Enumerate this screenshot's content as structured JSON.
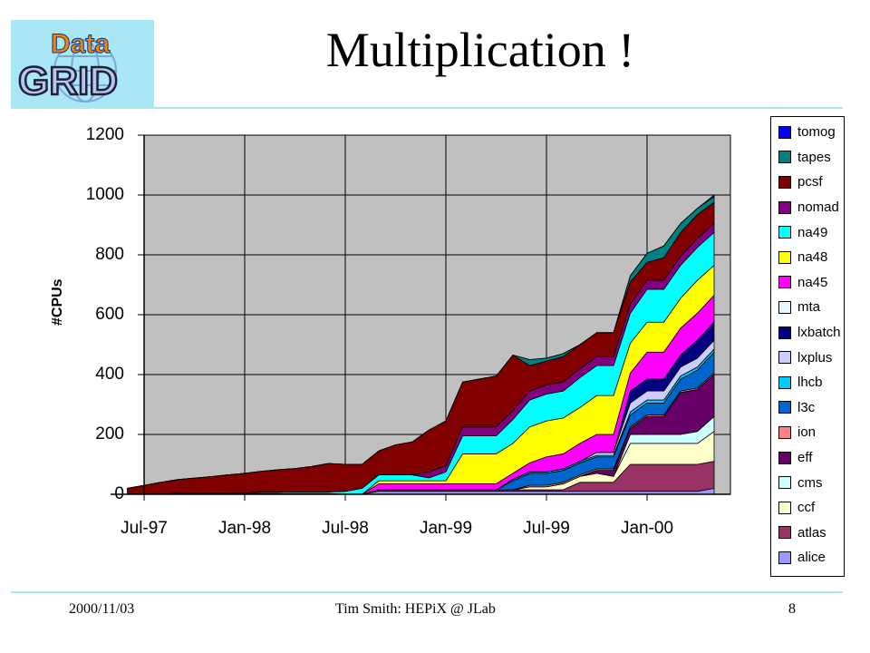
{
  "slide": {
    "title": "Multiplication !",
    "logo_text_top": "Data",
    "logo_text_bottom": "GRID",
    "footer_date": "2000/11/03",
    "footer_center": "Tim Smith: HEPiX @ JLab",
    "footer_page": "8"
  },
  "chart_data": {
    "type": "area",
    "stacked": true,
    "ylabel": "#CPUs",
    "xlabel": "",
    "ylim": [
      0,
      1200
    ],
    "yticks": [
      "0",
      "200",
      "400",
      "600",
      "800",
      "1000",
      "1200"
    ],
    "xticks": [
      "Jul-97",
      "Jan-98",
      "Jul-98",
      "Jan-99",
      "Jul-99",
      "Jan-00"
    ],
    "grid": "vertical lines at x ticks, horizontal at y ticks",
    "background": "#c0c0c0",
    "legend_position": "right",
    "x": [
      "Jun-97",
      "Jul-97",
      "Aug-97",
      "Sep-97",
      "Oct-97",
      "Nov-97",
      "Dec-97",
      "Jan-98",
      "Feb-98",
      "Mar-98",
      "Apr-98",
      "May-98",
      "Jun-98",
      "Jul-98",
      "Aug-98",
      "Sep-98",
      "Oct-98",
      "Nov-98",
      "Dec-98",
      "Jan-99",
      "Feb-99",
      "Mar-99",
      "Apr-99",
      "May-99",
      "Jun-99",
      "Jul-99",
      "Aug-99",
      "Sep-99",
      "Oct-99",
      "Nov-99",
      "Dec-99",
      "Jan-00",
      "Feb-00",
      "Mar-00",
      "Apr-00",
      "May-00"
    ],
    "series": [
      {
        "name": "alice",
        "color": "#9999ff",
        "values": [
          0,
          0,
          0,
          0,
          0,
          0,
          0,
          0,
          0,
          0,
          0,
          0,
          0,
          0,
          0,
          10,
          10,
          10,
          10,
          10,
          10,
          10,
          10,
          10,
          10,
          10,
          10,
          10,
          10,
          10,
          10,
          10,
          10,
          10,
          10,
          20
        ]
      },
      {
        "name": "atlas",
        "color": "#993366",
        "values": [
          0,
          0,
          0,
          0,
          0,
          0,
          0,
          0,
          0,
          0,
          0,
          0,
          0,
          0,
          0,
          5,
          5,
          5,
          5,
          5,
          5,
          5,
          5,
          5,
          5,
          5,
          5,
          30,
          30,
          30,
          90,
          90,
          90,
          90,
          90,
          90
        ]
      },
      {
        "name": "ccf",
        "color": "#ffffcc",
        "values": [
          0,
          0,
          0,
          2,
          2,
          2,
          3,
          3,
          3,
          3,
          3,
          3,
          3,
          0,
          0,
          0,
          0,
          0,
          0,
          0,
          0,
          0,
          0,
          0,
          10,
          10,
          20,
          20,
          30,
          20,
          70,
          70,
          70,
          70,
          70,
          100
        ]
      },
      {
        "name": "cms",
        "color": "#ccffff",
        "values": [
          0,
          0,
          0,
          0,
          0,
          0,
          0,
          0,
          0,
          0,
          0,
          0,
          0,
          0,
          0,
          0,
          0,
          0,
          0,
          0,
          0,
          0,
          0,
          0,
          0,
          0,
          0,
          0,
          0,
          0,
          30,
          30,
          30,
          30,
          40,
          50
        ]
      },
      {
        "name": "eff",
        "color": "#660066",
        "values": [
          0,
          0,
          0,
          0,
          0,
          0,
          0,
          0,
          0,
          0,
          0,
          0,
          0,
          0,
          0,
          0,
          0,
          0,
          0,
          0,
          0,
          0,
          0,
          0,
          0,
          0,
          0,
          0,
          10,
          20,
          20,
          60,
          60,
          140,
          140,
          140
        ]
      },
      {
        "name": "ion",
        "color": "#ff8080",
        "values": [
          0,
          0,
          0,
          0,
          0,
          0,
          0,
          0,
          0,
          0,
          0,
          0,
          0,
          0,
          0,
          0,
          0,
          0,
          0,
          0,
          0,
          0,
          0,
          0,
          5,
          5,
          5,
          5,
          5,
          5,
          5,
          5,
          5,
          5,
          5,
          5
        ]
      },
      {
        "name": "l3c",
        "color": "#0066cc",
        "values": [
          0,
          0,
          0,
          0,
          0,
          0,
          0,
          0,
          0,
          0,
          0,
          0,
          0,
          0,
          0,
          0,
          0,
          0,
          0,
          0,
          0,
          0,
          0,
          30,
          40,
          40,
          40,
          40,
          40,
          40,
          40,
          40,
          40,
          40,
          60,
          70
        ]
      },
      {
        "name": "lhcb",
        "color": "#00ccff",
        "values": [
          0,
          0,
          0,
          0,
          0,
          0,
          0,
          0,
          0,
          0,
          0,
          0,
          0,
          0,
          0,
          0,
          0,
          0,
          0,
          0,
          0,
          0,
          0,
          5,
          5,
          5,
          5,
          5,
          5,
          5,
          10,
          10,
          10,
          10,
          10,
          10
        ]
      },
      {
        "name": "lxplus",
        "color": "#ccccff",
        "values": [
          0,
          0,
          0,
          0,
          0,
          0,
          0,
          0,
          0,
          0,
          0,
          0,
          0,
          0,
          0,
          0,
          0,
          0,
          0,
          0,
          0,
          0,
          0,
          0,
          0,
          0,
          0,
          0,
          10,
          10,
          30,
          30,
          30,
          30,
          30,
          30
        ]
      },
      {
        "name": "lxbatch",
        "color": "#000080",
        "values": [
          0,
          0,
          0,
          0,
          0,
          0,
          0,
          0,
          0,
          0,
          0,
          0,
          0,
          0,
          0,
          0,
          0,
          0,
          0,
          0,
          0,
          0,
          0,
          0,
          0,
          0,
          0,
          0,
          0,
          0,
          40,
          40,
          40,
          40,
          60,
          60
        ]
      },
      {
        "name": "mta",
        "color": "#e6f7ff",
        "values": [
          0,
          0,
          0,
          0,
          0,
          0,
          0,
          0,
          0,
          0,
          0,
          0,
          0,
          0,
          0,
          0,
          0,
          0,
          0,
          0,
          0,
          0,
          0,
          0,
          0,
          0,
          0,
          0,
          0,
          0,
          0,
          0,
          0,
          0,
          0,
          0
        ]
      },
      {
        "name": "na45",
        "color": "#ff00ff",
        "values": [
          0,
          0,
          0,
          0,
          0,
          0,
          0,
          0,
          0,
          0,
          0,
          0,
          0,
          0,
          0,
          20,
          20,
          20,
          20,
          20,
          20,
          20,
          20,
          20,
          30,
          50,
          50,
          60,
          60,
          60,
          60,
          90,
          90,
          90,
          90,
          90
        ]
      },
      {
        "name": "na48",
        "color": "#ffff00",
        "values": [
          0,
          0,
          0,
          0,
          0,
          0,
          0,
          0,
          0,
          0,
          0,
          0,
          0,
          0,
          0,
          10,
          10,
          10,
          10,
          10,
          100,
          100,
          100,
          100,
          120,
          120,
          120,
          120,
          130,
          130,
          100,
          100,
          100,
          100,
          110,
          100
        ]
      },
      {
        "name": "na49",
        "color": "#00ffff",
        "values": [
          0,
          0,
          0,
          2,
          2,
          2,
          2,
          2,
          4,
          4,
          5,
          5,
          5,
          10,
          20,
          20,
          20,
          20,
          10,
          30,
          60,
          60,
          60,
          80,
          90,
          90,
          90,
          100,
          100,
          100,
          100,
          110,
          110,
          110,
          110,
          110
        ]
      },
      {
        "name": "nomad",
        "color": "#800080",
        "values": [
          0,
          0,
          0,
          0,
          0,
          0,
          0,
          0,
          0,
          0,
          0,
          0,
          0,
          0,
          0,
          0,
          0,
          0,
          20,
          20,
          30,
          30,
          30,
          30,
          30,
          30,
          30,
          30,
          30,
          30,
          30,
          30,
          30,
          30,
          30,
          30
        ]
      },
      {
        "name": "pcsf",
        "color": "#800000",
        "values": [
          20,
          30,
          40,
          45,
          50,
          55,
          60,
          65,
          70,
          75,
          78,
          85,
          95,
          90,
          80,
          80,
          100,
          110,
          140,
          150,
          150,
          160,
          170,
          185,
          85,
          80,
          85,
          80,
          80,
          80,
          75,
          60,
          75,
          80,
          80,
          70
        ]
      },
      {
        "name": "tapes",
        "color": "#008080",
        "values": [
          0,
          0,
          0,
          0,
          0,
          0,
          0,
          0,
          0,
          0,
          0,
          0,
          0,
          0,
          0,
          0,
          0,
          0,
          0,
          0,
          0,
          0,
          0,
          0,
          20,
          10,
          10,
          0,
          0,
          0,
          20,
          30,
          40,
          30,
          20,
          20
        ]
      },
      {
        "name": "tomog",
        "color": "#0000ff",
        "values": [
          0,
          0,
          0,
          0,
          0,
          0,
          0,
          0,
          0,
          0,
          0,
          0,
          0,
          0,
          0,
          0,
          0,
          0,
          0,
          0,
          0,
          0,
          0,
          0,
          0,
          0,
          0,
          0,
          0,
          0,
          0,
          0,
          0,
          0,
          0,
          5
        ]
      }
    ]
  }
}
